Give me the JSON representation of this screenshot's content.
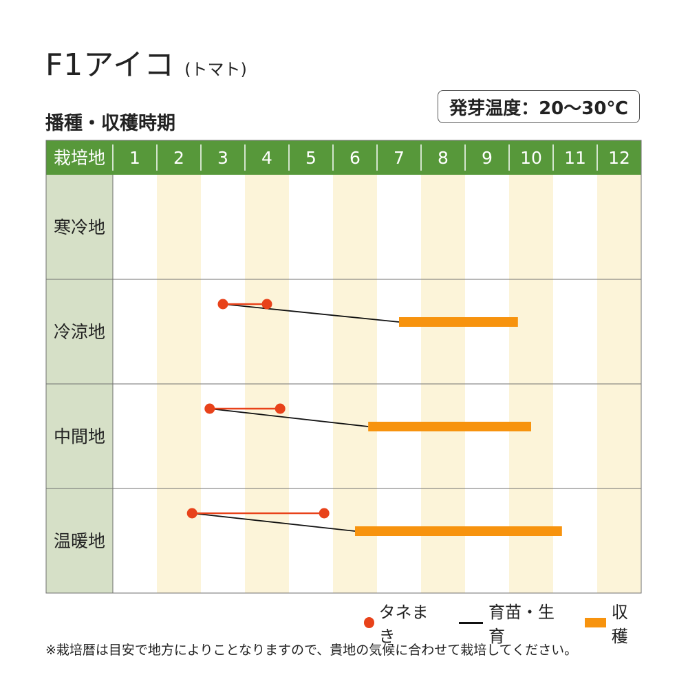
{
  "title": {
    "main": "F1アイコ",
    "sub": "(トマト)"
  },
  "section_label": "播種・収穫時期",
  "germination_temp": "発芽温度：20〜30℃",
  "legend": {
    "sowing": "タネまき",
    "nursery": "育苗・生育",
    "harvest": "収穫"
  },
  "note": "※栽培暦は目安で地方によりことなりますので、貴地の気候に合わせて栽培してください。",
  "colors": {
    "header_green": "#57983a",
    "label_column": "#d6e0c7",
    "alt_column": "#fcf4d9",
    "sowing_red": "#e8421a",
    "harvest_orange": "#f7930e",
    "grid_line": "#6f6f6f"
  },
  "chart_data": {
    "type": "gantt",
    "header_label": "栽培地",
    "months": [
      "1",
      "2",
      "3",
      "4",
      "5",
      "6",
      "7",
      "8",
      "9",
      "10",
      "11",
      "12"
    ],
    "rows": [
      {
        "region": "寒冷地",
        "sowing": null,
        "harvest": null
      },
      {
        "region": "冷涼地",
        "sowing": [
          3.5,
          4.5
        ],
        "harvest": [
          7.5,
          10.2
        ]
      },
      {
        "region": "中間地",
        "sowing": [
          3.2,
          4.8
        ],
        "harvest": [
          6.8,
          10.5
        ]
      },
      {
        "region": "温暖地",
        "sowing": [
          2.8,
          5.8
        ],
        "harvest": [
          6.5,
          11.2
        ]
      }
    ]
  }
}
